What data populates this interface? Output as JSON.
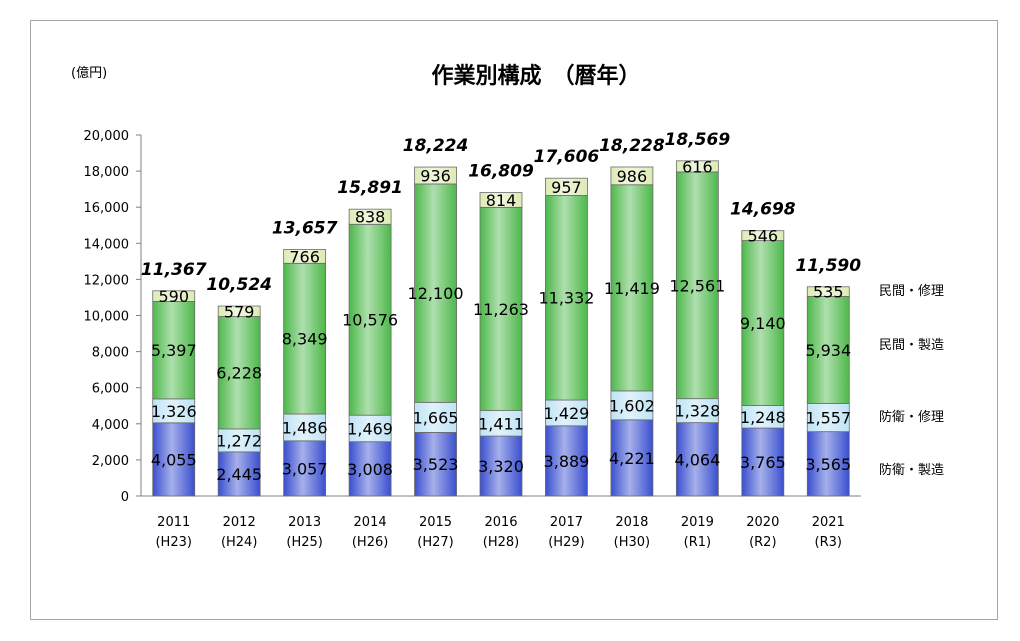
{
  "chart_data": {
    "type": "bar",
    "stacked": true,
    "title": "作業別構成　（暦年）",
    "unit_label": "(億円)",
    "categories": [
      "2011",
      "2012",
      "2013",
      "2014",
      "2015",
      "2016",
      "2017",
      "2018",
      "2019",
      "2020",
      "2021"
    ],
    "category_sublabels": [
      "(H23)",
      "(H24)",
      "(H25)",
      "(H26)",
      "(H27)",
      "(H28)",
      "(H29)",
      "(H30)",
      "(R1)",
      "(R2)",
      "(R3)"
    ],
    "series": [
      {
        "name": "防衛・製造",
        "color": "#3a4fd0",
        "values": [
          4055,
          2445,
          3057,
          3008,
          3523,
          3320,
          3889,
          4221,
          4064,
          3765,
          3565
        ]
      },
      {
        "name": "防衛・修理",
        "color": "#bde3f5",
        "values": [
          1326,
          1272,
          1486,
          1469,
          1665,
          1411,
          1429,
          1602,
          1328,
          1248,
          1557
        ]
      },
      {
        "name": "民間・製造",
        "color": "#4db84a",
        "values": [
          5397,
          6228,
          8349,
          10576,
          12100,
          11263,
          11332,
          11419,
          12561,
          9140,
          5934
        ]
      },
      {
        "name": "民間・修理",
        "color": "#dcebb4",
        "values": [
          590,
          579,
          766,
          838,
          936,
          814,
          957,
          986,
          616,
          546,
          535
        ]
      }
    ],
    "segment_labels": [
      [
        "4,055",
        "2,445",
        "3,057",
        "3,008",
        "3,523",
        "3,320",
        "3,889",
        "4,221",
        "4,064",
        "3,765",
        "3,565"
      ],
      [
        "1,326",
        "1,272",
        "1,486",
        "1,469",
        "1,665",
        "1,411",
        "1,429",
        "1,602",
        "1,328",
        "1,248",
        "1,557"
      ],
      [
        "5,397",
        "6,228",
        "8,349",
        "10,576",
        "12,100",
        "11,263",
        "11,332",
        "11,419",
        "12,561",
        "9,140",
        "5,934"
      ],
      [
        "590",
        "579",
        "766",
        "838",
        "936",
        "814",
        "957",
        "986",
        "616",
        "546",
        "535"
      ]
    ],
    "totals": [
      11367,
      10524,
      13657,
      15891,
      18224,
      16809,
      17606,
      18228,
      18569,
      14698,
      11590
    ],
    "total_labels": [
      "11,367",
      "10,524",
      "13,657",
      "15,891",
      "18,224",
      "16,809",
      "17,606",
      "18,228",
      "18,569",
      "14,698",
      "11,590"
    ],
    "ylim": [
      0,
      20000
    ],
    "y_ticks": [
      "0",
      "2,000",
      "4,000",
      "6,000",
      "8,000",
      "10,000",
      "12,000",
      "14,000",
      "16,000",
      "18,000",
      "20,000"
    ],
    "y_tick_values": [
      0,
      2000,
      4000,
      6000,
      8000,
      10000,
      12000,
      14000,
      16000,
      18000,
      20000
    ],
    "grid": false,
    "legend_position": "right"
  }
}
